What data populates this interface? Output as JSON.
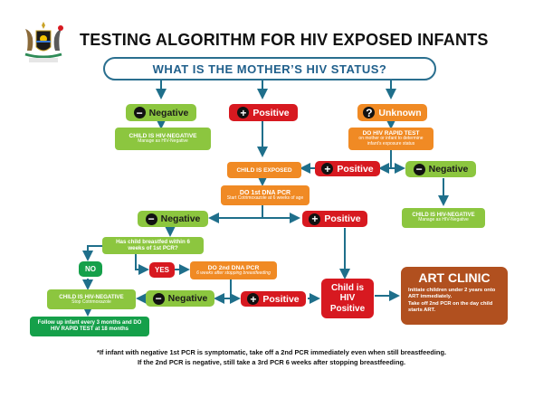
{
  "header": {
    "coat_of_arms_caption": "THE REPUBLIC OF UGANDA",
    "title": "TESTING ALGORITHM FOR HIV EXPOSED INFANTS"
  },
  "question": "WHAT IS THE MOTHER’S  HIV STATUS?",
  "branches": {
    "negative": "Negative",
    "positive": "Positive",
    "unknown": "Unknown"
  },
  "nodes": {
    "child_neg_top": {
      "title": "CHILD IS HIV-NEGATIVE",
      "sub": "Manage as HIV-Negative"
    },
    "rapid_test": {
      "title": "DO HIV RAPID TEST",
      "sub": "on mother or infant to determine infant’s exposure status"
    },
    "rapid_positive": "Positive",
    "rapid_negative": "Negative",
    "child_exposed": "CHILD IS EXPOSED",
    "child_neg_right": {
      "title": "CHILD IS HIV-NEGATIVE",
      "sub": "Manage as HIV-Negative"
    },
    "pcr1": {
      "title": "DO 1st DNA PCR",
      "sub": "Start Cotrimoxazole at 6 weeks of age"
    },
    "pcr1_negative": "Negative",
    "pcr1_positive": "Positive",
    "breastfed_q": "Has child breastfed within 6 weeks of 1st PCR?",
    "no": "NO",
    "yes": "YES",
    "pcr2": {
      "title": "DO 2nd DNA PCR",
      "sub": "6 weeks after stopping breastfeeding"
    },
    "child_neg_bottom": {
      "title": "CHILD IS HIV-NEGATIVE",
      "sub": "Stop Cotrimoxazole"
    },
    "pcr2_negative": "Negative",
    "pcr2_positive": "Positive",
    "child_positive": "Child is HIV Positive",
    "follow_up": "Follow up infant every 3 months and DO HIV RAPID TEST at 18 months",
    "art_clinic": {
      "title": "ART CLINIC",
      "line1": "Initiate children under 2 years onto ART immediately.",
      "line2": "Take off 2nd PCR on the day child starts ART."
    }
  },
  "footnote": {
    "line1": "*If infant with negative 1st PCR  is symptomatic, take off a 2nd PCR immediately even when still breastfeeding.",
    "line2": "If the 2nd PCR is negative, still take a 3rd PCR  6 weeks after stopping breastfeeding."
  },
  "colors": {
    "arrow": "#1f6f8b",
    "question_text": "#1f5f8b",
    "green": "#8cc63f",
    "red": "#d71920",
    "orange": "#f08a24",
    "dark_green": "#15a04a",
    "art_brown": "#b1501f"
  }
}
